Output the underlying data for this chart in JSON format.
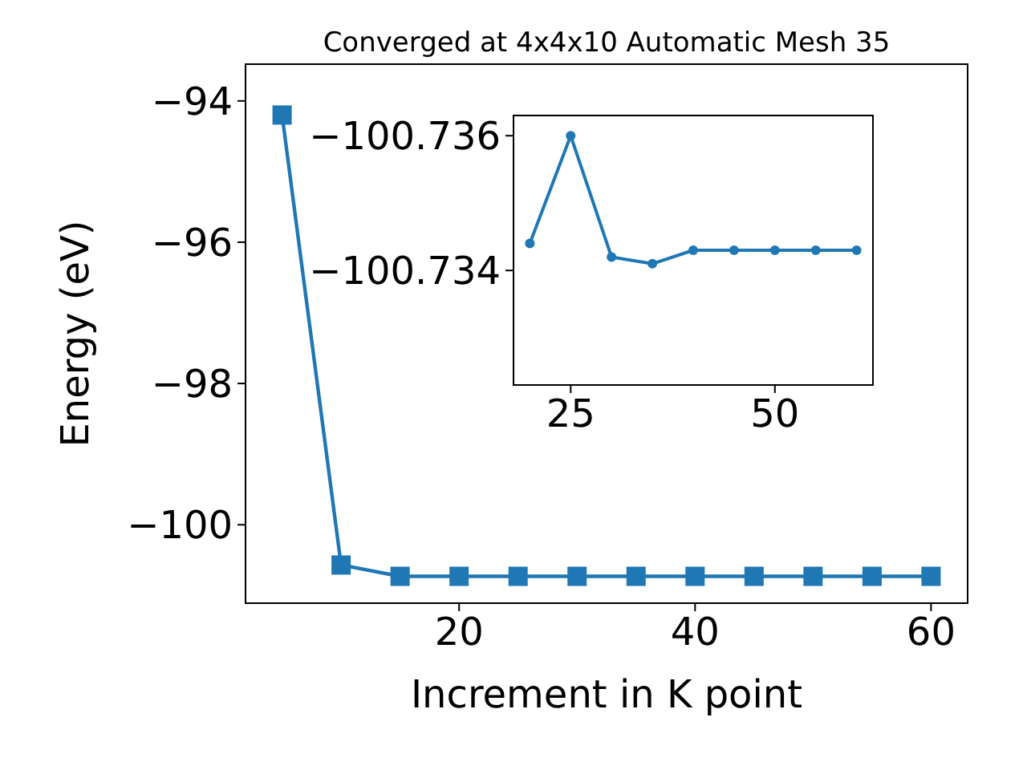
{
  "chart_data": [
    {
      "type": "line",
      "title": "Converged at 4x4x10 Automatic Mesh 35",
      "xlabel": "Increment in K point",
      "ylabel": "Energy (eV)",
      "x": [
        5,
        10,
        15,
        20,
        25,
        30,
        35,
        40,
        45,
        50,
        55,
        60
      ],
      "series": [
        {
          "color": "#1f77b4",
          "values": [
            -94.2,
            -100.57,
            -100.73,
            -100.73,
            -100.73,
            -100.73,
            -100.73,
            -100.73,
            -100.73,
            -100.73,
            -100.73,
            -100.73
          ]
        }
      ],
      "xlim": [
        1.9,
        63.1
      ],
      "ylim": [
        -101.11,
        -93.48
      ],
      "xticks": [
        20,
        40,
        60
      ],
      "yticks": [
        {
          "value": -94,
          "label": "−94"
        },
        {
          "value": -96,
          "label": "−96"
        },
        {
          "value": -98,
          "label": "−98"
        },
        {
          "value": -100,
          "label": "−100"
        }
      ],
      "marker": "square",
      "grid": false
    },
    {
      "type": "line",
      "x": [
        20,
        25,
        30,
        35,
        40,
        45,
        50,
        55,
        60
      ],
      "series": [
        {
          "color": "#1f77b4",
          "values": [
            -100.7344,
            -100.736,
            -100.7342,
            -100.7341,
            -100.7343,
            -100.7343,
            -100.7343,
            -100.7343,
            -100.7343
          ]
        }
      ],
      "xlim": [
        18,
        62
      ],
      "ylim": [
        -100.7323,
        -100.7363
      ],
      "xticks": [
        25,
        50
      ],
      "yticks": [
        {
          "value": -100.736,
          "label": "−100.736"
        },
        {
          "value": -100.734,
          "label": "−100.734"
        }
      ],
      "marker": "circle",
      "grid": false
    }
  ]
}
